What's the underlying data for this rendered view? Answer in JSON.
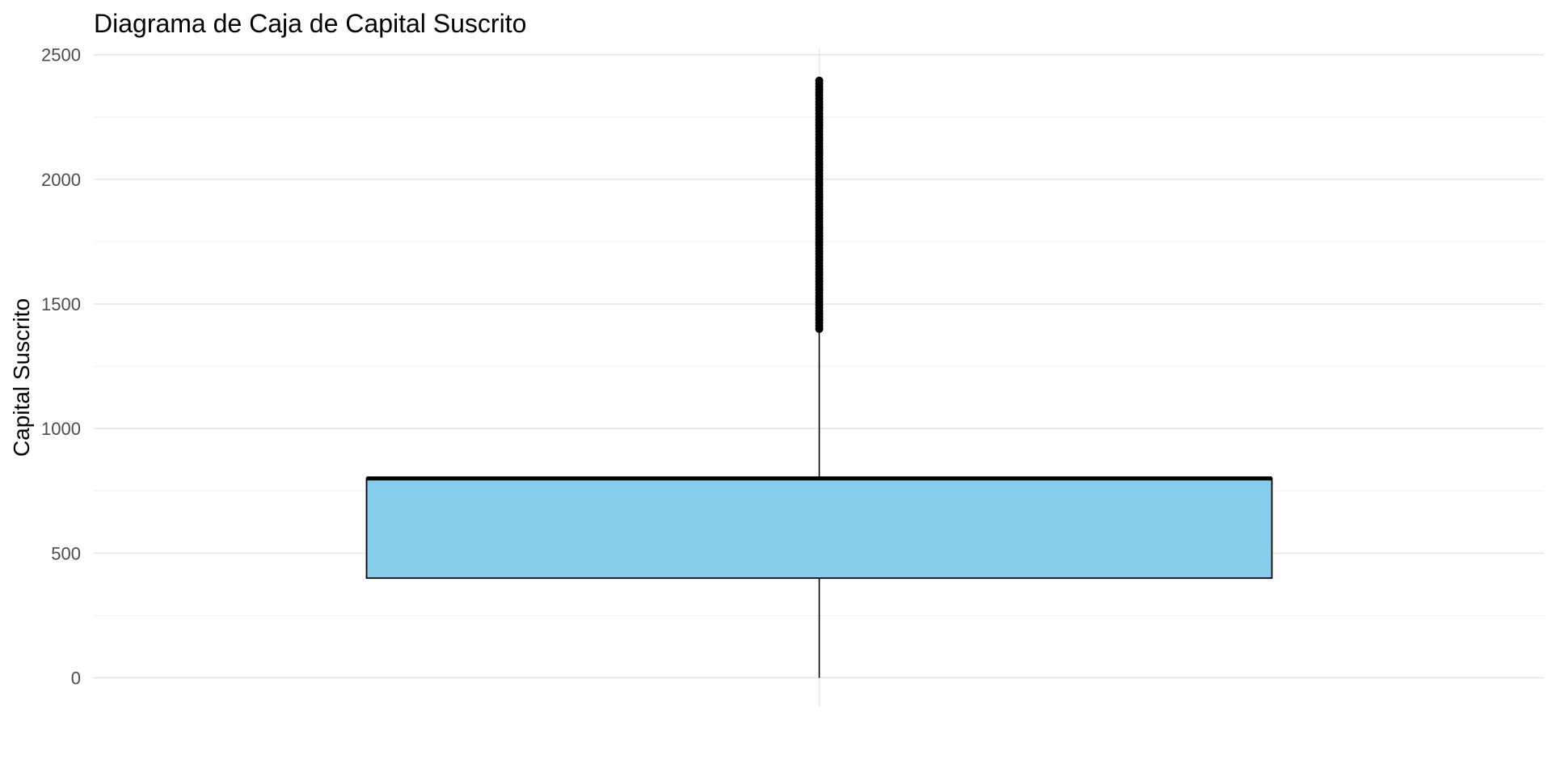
{
  "chart_data": {
    "type": "boxplot",
    "title": "Diagrama de Caja de Capital Suscrito",
    "xlabel": "",
    "ylabel": "Capital Suscrito",
    "ylim": [
      -115,
      2525
    ],
    "yticks": [
      0,
      500,
      1000,
      1500,
      2000,
      2500
    ],
    "ytick_labels": [
      "0",
      "500",
      "1000",
      "1500",
      "2000",
      "2500"
    ],
    "grid": true,
    "legend": "none",
    "boxes": [
      {
        "min": 0,
        "q1": 400,
        "median": 800,
        "q3": 800,
        "whisker_high": 1400,
        "outliers_range": [
          1400,
          2400
        ]
      }
    ],
    "colors": {
      "box_fill": "#87CEEB",
      "box_stroke": "#000000",
      "grid_major": "#e6e6e6",
      "grid_minor": "#f2f2f2"
    }
  }
}
